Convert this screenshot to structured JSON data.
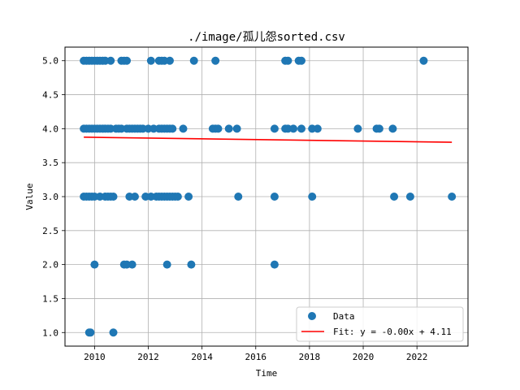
{
  "chart_data": {
    "type": "scatter",
    "title": "./image/孤儿怨sorted.csv",
    "xlabel": "Time",
    "ylabel": "Value",
    "xlim": [
      2008.9,
      2023.9
    ],
    "ylim": [
      0.8,
      5.2
    ],
    "xticks": [
      2010,
      2012,
      2014,
      2016,
      2018,
      2020,
      2022
    ],
    "yticks": [
      1.0,
      1.5,
      2.0,
      2.5,
      3.0,
      3.5,
      4.0,
      4.5,
      5.0
    ],
    "grid": true,
    "legend_position": "bottom-right",
    "colors": {
      "points": "#1f77b4",
      "fit": "#ff0000",
      "grid": "#b0b0b0"
    },
    "series": [
      {
        "name": "Data",
        "kind": "scatter",
        "points": [
          [
            2009.6,
            5
          ],
          [
            2009.7,
            5
          ],
          [
            2009.8,
            5
          ],
          [
            2009.9,
            5
          ],
          [
            2010.0,
            5
          ],
          [
            2010.1,
            5
          ],
          [
            2010.2,
            5
          ],
          [
            2010.3,
            5
          ],
          [
            2010.4,
            5
          ],
          [
            2010.6,
            5
          ],
          [
            2011.0,
            5
          ],
          [
            2011.1,
            5
          ],
          [
            2011.2,
            5
          ],
          [
            2012.1,
            5
          ],
          [
            2012.4,
            5
          ],
          [
            2012.5,
            5
          ],
          [
            2012.6,
            5
          ],
          [
            2012.8,
            5
          ],
          [
            2013.7,
            5
          ],
          [
            2014.5,
            5
          ],
          [
            2017.1,
            5
          ],
          [
            2017.2,
            5
          ],
          [
            2017.6,
            5
          ],
          [
            2017.7,
            5
          ],
          [
            2022.25,
            5
          ],
          [
            2009.6,
            4
          ],
          [
            2009.7,
            4
          ],
          [
            2009.8,
            4
          ],
          [
            2009.9,
            4
          ],
          [
            2010.0,
            4
          ],
          [
            2010.1,
            4
          ],
          [
            2010.2,
            4
          ],
          [
            2010.3,
            4
          ],
          [
            2010.4,
            4
          ],
          [
            2010.5,
            4
          ],
          [
            2010.6,
            4
          ],
          [
            2010.8,
            4
          ],
          [
            2010.9,
            4
          ],
          [
            2011.0,
            4
          ],
          [
            2011.2,
            4
          ],
          [
            2011.3,
            4
          ],
          [
            2011.4,
            4
          ],
          [
            2011.5,
            4
          ],
          [
            2011.6,
            4
          ],
          [
            2011.7,
            4
          ],
          [
            2011.8,
            4
          ],
          [
            2012.0,
            4
          ],
          [
            2012.2,
            4
          ],
          [
            2012.4,
            4
          ],
          [
            2012.5,
            4
          ],
          [
            2012.6,
            4
          ],
          [
            2012.7,
            4
          ],
          [
            2012.8,
            4
          ],
          [
            2012.9,
            4
          ],
          [
            2013.3,
            4
          ],
          [
            2014.4,
            4
          ],
          [
            2014.5,
            4
          ],
          [
            2014.6,
            4
          ],
          [
            2015.0,
            4
          ],
          [
            2015.3,
            4
          ],
          [
            2016.7,
            4
          ],
          [
            2017.1,
            4
          ],
          [
            2017.2,
            4
          ],
          [
            2017.4,
            4
          ],
          [
            2017.7,
            4
          ],
          [
            2018.1,
            4
          ],
          [
            2018.3,
            4
          ],
          [
            2019.8,
            4
          ],
          [
            2020.5,
            4
          ],
          [
            2020.6,
            4
          ],
          [
            2021.1,
            4
          ],
          [
            2009.6,
            3
          ],
          [
            2009.7,
            3
          ],
          [
            2009.8,
            3
          ],
          [
            2009.9,
            3
          ],
          [
            2010.0,
            3
          ],
          [
            2010.2,
            3
          ],
          [
            2010.4,
            3
          ],
          [
            2010.5,
            3
          ],
          [
            2010.6,
            3
          ],
          [
            2010.7,
            3
          ],
          [
            2011.3,
            3
          ],
          [
            2011.5,
            3
          ],
          [
            2011.9,
            3
          ],
          [
            2012.1,
            3
          ],
          [
            2012.3,
            3
          ],
          [
            2012.4,
            3
          ],
          [
            2012.5,
            3
          ],
          [
            2012.6,
            3
          ],
          [
            2012.7,
            3
          ],
          [
            2012.8,
            3
          ],
          [
            2012.9,
            3
          ],
          [
            2013.0,
            3
          ],
          [
            2013.1,
            3
          ],
          [
            2013.5,
            3
          ],
          [
            2015.35,
            3
          ],
          [
            2016.7,
            3
          ],
          [
            2018.1,
            3
          ],
          [
            2021.15,
            3
          ],
          [
            2021.75,
            3
          ],
          [
            2023.3,
            3
          ],
          [
            2010.0,
            2
          ],
          [
            2011.1,
            2
          ],
          [
            2011.2,
            2
          ],
          [
            2011.4,
            2
          ],
          [
            2012.7,
            2
          ],
          [
            2013.6,
            2
          ],
          [
            2016.7,
            2
          ],
          [
            2009.8,
            1
          ],
          [
            2009.85,
            1
          ],
          [
            2010.7,
            1
          ]
        ]
      },
      {
        "name": "Fit: y = -0.00x + 4.11",
        "kind": "line",
        "points": [
          [
            2009.6,
            3.875
          ],
          [
            2023.3,
            3.8
          ]
        ]
      }
    ]
  }
}
